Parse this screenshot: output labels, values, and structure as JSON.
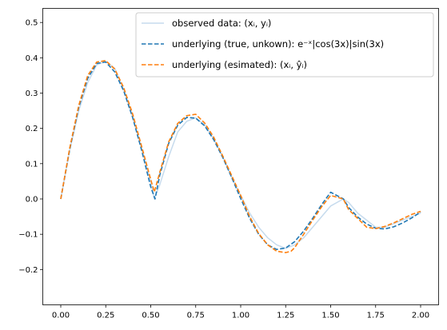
{
  "chart_data": {
    "type": "line",
    "title": "",
    "xlabel": "",
    "ylabel": "",
    "xlim": [
      -0.1,
      2.1
    ],
    "ylim": [
      -0.3,
      0.54
    ],
    "x_ticks": [
      0.0,
      0.25,
      0.5,
      0.75,
      1.0,
      1.25,
      1.5,
      1.75,
      2.0
    ],
    "x_tick_labels": [
      "0.00",
      "0.25",
      "0.50",
      "0.75",
      "1.00",
      "1.25",
      "1.50",
      "1.75",
      "2.00"
    ],
    "y_ticks": [
      -0.2,
      -0.1,
      0.0,
      0.1,
      0.2,
      0.3,
      0.4,
      0.5
    ],
    "y_tick_labels": [
      "−0.2",
      "−0.1",
      "0.0",
      "0.1",
      "0.2",
      "0.3",
      "0.4",
      "0.5"
    ],
    "grid": false,
    "legend_position": "upper-right",
    "series": [
      {
        "name": "observed data: (xᵢ, yᵢ)",
        "style": "solid",
        "color": "#c6dbed",
        "x": [
          0.0,
          0.05,
          0.1,
          0.15,
          0.2,
          0.25,
          0.3,
          0.35,
          0.4,
          0.45,
          0.5,
          0.52,
          0.55,
          0.6,
          0.65,
          0.7,
          0.75,
          0.8,
          0.85,
          0.9,
          0.95,
          1.0,
          1.05,
          1.1,
          1.15,
          1.2,
          1.25,
          1.3,
          1.35,
          1.4,
          1.45,
          1.5,
          1.57,
          1.6,
          1.65,
          1.7,
          1.75,
          1.8,
          1.85,
          1.9,
          1.95,
          2.0
        ],
        "y": [
          0.0,
          0.14,
          0.25,
          0.33,
          0.38,
          0.39,
          0.37,
          0.31,
          0.23,
          0.14,
          0.05,
          0.0,
          0.04,
          0.12,
          0.19,
          0.22,
          0.23,
          0.21,
          0.17,
          0.12,
          0.06,
          0.01,
          -0.04,
          -0.08,
          -0.11,
          -0.13,
          -0.14,
          -0.13,
          -0.11,
          -0.08,
          -0.05,
          -0.02,
          0.0,
          -0.01,
          -0.04,
          -0.06,
          -0.08,
          -0.08,
          -0.07,
          -0.06,
          -0.05,
          -0.04
        ]
      },
      {
        "name": "underlying (true, unkown): e⁻ˣ|cos(3x)|sin(3x)",
        "style": "dashed",
        "color": "#1f77b4",
        "x": [
          0.0,
          0.05,
          0.1,
          0.15,
          0.2,
          0.25,
          0.3,
          0.35,
          0.4,
          0.45,
          0.5,
          0.524,
          0.55,
          0.6,
          0.65,
          0.7,
          0.75,
          0.8,
          0.85,
          0.9,
          0.95,
          1.0,
          1.05,
          1.1,
          1.15,
          1.2,
          1.25,
          1.3,
          1.35,
          1.4,
          1.45,
          1.5,
          1.571,
          1.6,
          1.65,
          1.7,
          1.75,
          1.8,
          1.85,
          1.9,
          1.95,
          2.0
        ],
        "y": [
          0.0,
          0.141,
          0.26,
          0.342,
          0.384,
          0.388,
          0.36,
          0.306,
          0.23,
          0.137,
          0.034,
          0.0,
          0.067,
          0.158,
          0.209,
          0.231,
          0.229,
          0.207,
          0.168,
          0.118,
          0.061,
          0.001,
          -0.055,
          -0.1,
          -0.13,
          -0.143,
          -0.139,
          -0.121,
          -0.091,
          -0.055,
          -0.016,
          0.019,
          0.0,
          -0.024,
          -0.051,
          -0.071,
          -0.083,
          -0.085,
          -0.079,
          -0.068,
          -0.054,
          -0.037
        ]
      },
      {
        "name": "underlying (esimated): (xᵢ, ŷᵢ)",
        "style": "dashed",
        "color": "#ff7f0e",
        "x": [
          0.0,
          0.05,
          0.1,
          0.15,
          0.2,
          0.25,
          0.3,
          0.35,
          0.4,
          0.45,
          0.5,
          0.52,
          0.55,
          0.6,
          0.65,
          0.7,
          0.75,
          0.8,
          0.85,
          0.9,
          0.95,
          1.0,
          1.05,
          1.1,
          1.15,
          1.2,
          1.25,
          1.28,
          1.3,
          1.35,
          1.4,
          1.45,
          1.5,
          1.57,
          1.6,
          1.65,
          1.7,
          1.75,
          1.8,
          1.85,
          1.9,
          1.95,
          2.0
        ],
        "y": [
          0.0,
          0.145,
          0.265,
          0.35,
          0.388,
          0.392,
          0.368,
          0.315,
          0.24,
          0.148,
          0.055,
          0.02,
          0.075,
          0.162,
          0.214,
          0.236,
          0.24,
          0.215,
          0.175,
          0.122,
          0.066,
          0.01,
          -0.05,
          -0.098,
          -0.13,
          -0.148,
          -0.152,
          -0.148,
          -0.138,
          -0.1,
          -0.06,
          -0.022,
          0.01,
          0.0,
          -0.03,
          -0.055,
          -0.08,
          -0.084,
          -0.078,
          -0.068,
          -0.056,
          -0.044,
          -0.035
        ]
      }
    ]
  }
}
